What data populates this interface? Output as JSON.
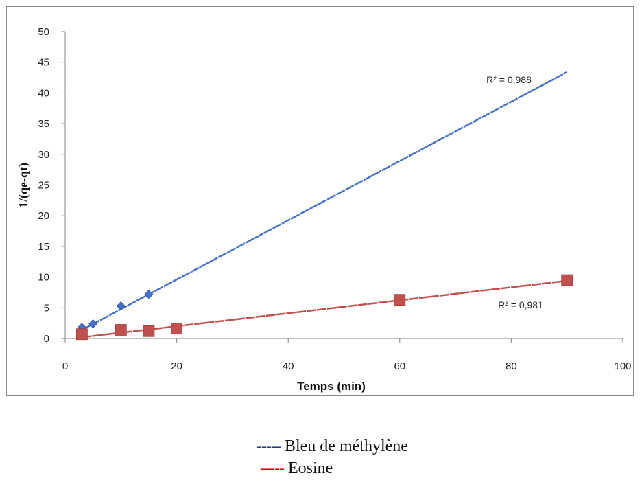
{
  "chart_data": {
    "type": "scatter",
    "title": "",
    "xlabel": "Temps (min)",
    "ylabel": "1/(qe-qt)",
    "xlim": [
      0,
      100
    ],
    "ylim": [
      0,
      50
    ],
    "xticks": [
      0,
      20,
      40,
      60,
      80,
      100
    ],
    "yticks": [
      0,
      5,
      10,
      15,
      20,
      25,
      30,
      35,
      40,
      45,
      50
    ],
    "grid": false,
    "series": [
      {
        "name": "Bleu de méthylène",
        "marker": "diamond",
        "color": "#4472c4",
        "x": [
          3,
          5,
          10,
          15
        ],
        "y": [
          1.8,
          2.4,
          5.3,
          7.2
        ],
        "trendline": {
          "x": [
            3,
            90
          ],
          "y": [
            1.4,
            43.4
          ]
        },
        "r2_label": "R² = 0,988"
      },
      {
        "name": "Eosine",
        "marker": "square",
        "color": "#c0504d",
        "x": [
          3,
          10,
          15,
          20,
          60,
          90
        ],
        "y": [
          0.7,
          1.4,
          1.2,
          1.6,
          6.3,
          9.5
        ],
        "trendline": {
          "x": [
            3,
            90
          ],
          "y": [
            0.2,
            9.4
          ]
        },
        "r2_label": "R² = 0,981"
      }
    ]
  },
  "legend": {
    "items": [
      {
        "dash": "-----",
        "label": "Bleu de méthylène",
        "color": "#1f3d7a"
      },
      {
        "dash": "-----",
        "label": "Eosine",
        "color": "#e00000"
      }
    ]
  }
}
